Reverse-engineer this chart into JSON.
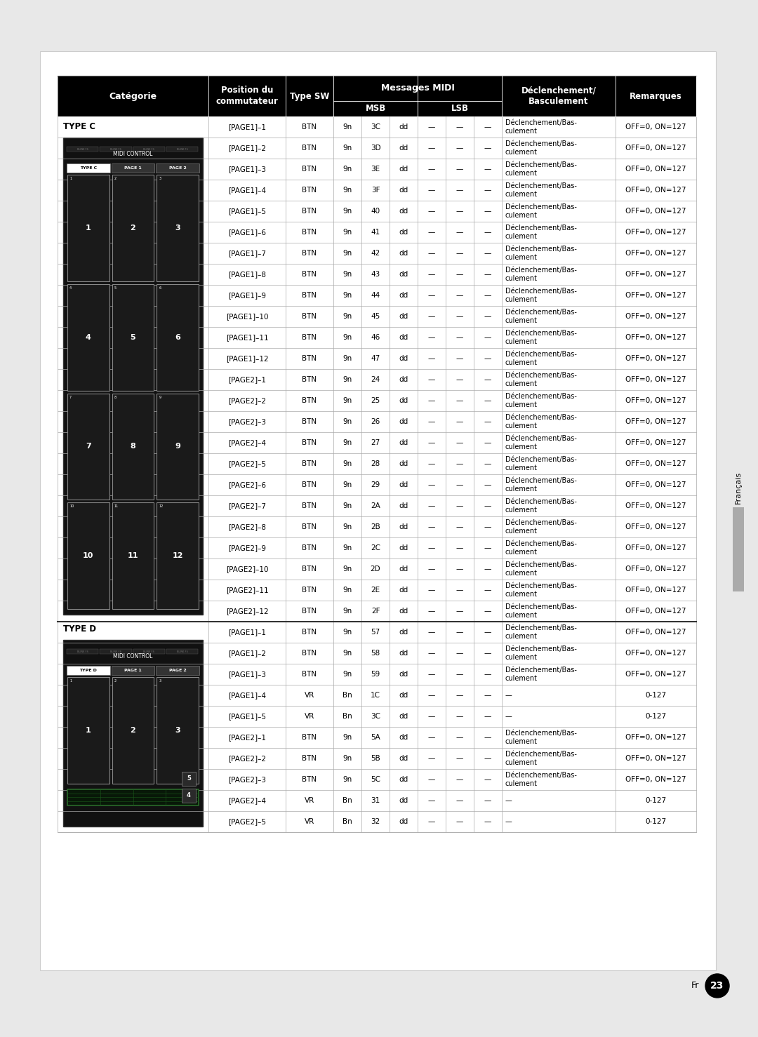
{
  "header_bg": "#000000",
  "header_text": "#ffffff",
  "border_color": "#999999",
  "text_color": "#000000",
  "page_bg": "#ffffff",
  "rows": [
    {
      "page": "[PAGE1]–1",
      "sw": "BTN",
      "msb1": "9n",
      "msb2": "3C",
      "msb3": "dd",
      "lsb1": "—",
      "lsb2": "—",
      "lsb3": "—",
      "trigger": "Déclenchement/Bas-\nculement",
      "remarks": "OFF=0, ON=127",
      "section": "C"
    },
    {
      "page": "[PAGE1]–2",
      "sw": "BTN",
      "msb1": "9n",
      "msb2": "3D",
      "msb3": "dd",
      "lsb1": "—",
      "lsb2": "—",
      "lsb3": "—",
      "trigger": "Déclenchement/Bas-\nculement",
      "remarks": "OFF=0, ON=127",
      "section": "C"
    },
    {
      "page": "[PAGE1]–3",
      "sw": "BTN",
      "msb1": "9n",
      "msb2": "3E",
      "msb3": "dd",
      "lsb1": "—",
      "lsb2": "—",
      "lsb3": "—",
      "trigger": "Déclenchement/Bas-\nculement",
      "remarks": "OFF=0, ON=127",
      "section": "C"
    },
    {
      "page": "[PAGE1]–4",
      "sw": "BTN",
      "msb1": "9n",
      "msb2": "3F",
      "msb3": "dd",
      "lsb1": "—",
      "lsb2": "—",
      "lsb3": "—",
      "trigger": "Déclenchement/Bas-\nculement",
      "remarks": "OFF=0, ON=127",
      "section": "C"
    },
    {
      "page": "[PAGE1]–5",
      "sw": "BTN",
      "msb1": "9n",
      "msb2": "40",
      "msb3": "dd",
      "lsb1": "—",
      "lsb2": "—",
      "lsb3": "—",
      "trigger": "Déclenchement/Bas-\nculement",
      "remarks": "OFF=0, ON=127",
      "section": "C"
    },
    {
      "page": "[PAGE1]–6",
      "sw": "BTN",
      "msb1": "9n",
      "msb2": "41",
      "msb3": "dd",
      "lsb1": "—",
      "lsb2": "—",
      "lsb3": "—",
      "trigger": "Déclenchement/Bas-\nculement",
      "remarks": "OFF=0, ON=127",
      "section": "C"
    },
    {
      "page": "[PAGE1]–7",
      "sw": "BTN",
      "msb1": "9n",
      "msb2": "42",
      "msb3": "dd",
      "lsb1": "—",
      "lsb2": "—",
      "lsb3": "—",
      "trigger": "Déclenchement/Bas-\nculement",
      "remarks": "OFF=0, ON=127",
      "section": "C"
    },
    {
      "page": "[PAGE1]–8",
      "sw": "BTN",
      "msb1": "9n",
      "msb2": "43",
      "msb3": "dd",
      "lsb1": "—",
      "lsb2": "—",
      "lsb3": "—",
      "trigger": "Déclenchement/Bas-\nculement",
      "remarks": "OFF=0, ON=127",
      "section": "C"
    },
    {
      "page": "[PAGE1]–9",
      "sw": "BTN",
      "msb1": "9n",
      "msb2": "44",
      "msb3": "dd",
      "lsb1": "—",
      "lsb2": "—",
      "lsb3": "—",
      "trigger": "Déclenchement/Bas-\nculement",
      "remarks": "OFF=0, ON=127",
      "section": "C"
    },
    {
      "page": "[PAGE1]–10",
      "sw": "BTN",
      "msb1": "9n",
      "msb2": "45",
      "msb3": "dd",
      "lsb1": "—",
      "lsb2": "—",
      "lsb3": "—",
      "trigger": "Déclenchement/Bas-\nculement",
      "remarks": "OFF=0, ON=127",
      "section": "C"
    },
    {
      "page": "[PAGE1]–11",
      "sw": "BTN",
      "msb1": "9n",
      "msb2": "46",
      "msb3": "dd",
      "lsb1": "—",
      "lsb2": "—",
      "lsb3": "—",
      "trigger": "Déclenchement/Bas-\nculement",
      "remarks": "OFF=0, ON=127",
      "section": "C"
    },
    {
      "page": "[PAGE1]–12",
      "sw": "BTN",
      "msb1": "9n",
      "msb2": "47",
      "msb3": "dd",
      "lsb1": "—",
      "lsb2": "—",
      "lsb3": "—",
      "trigger": "Déclenchement/Bas-\nculement",
      "remarks": "OFF=0, ON=127",
      "section": "C"
    },
    {
      "page": "[PAGE2]–1",
      "sw": "BTN",
      "msb1": "9n",
      "msb2": "24",
      "msb3": "dd",
      "lsb1": "—",
      "lsb2": "—",
      "lsb3": "—",
      "trigger": "Déclenchement/Bas-\nculement",
      "remarks": "OFF=0, ON=127",
      "section": "C"
    },
    {
      "page": "[PAGE2]–2",
      "sw": "BTN",
      "msb1": "9n",
      "msb2": "25",
      "msb3": "dd",
      "lsb1": "—",
      "lsb2": "—",
      "lsb3": "—",
      "trigger": "Déclenchement/Bas-\nculement",
      "remarks": "OFF=0, ON=127",
      "section": "C"
    },
    {
      "page": "[PAGE2]–3",
      "sw": "BTN",
      "msb1": "9n",
      "msb2": "26",
      "msb3": "dd",
      "lsb1": "—",
      "lsb2": "—",
      "lsb3": "—",
      "trigger": "Déclenchement/Bas-\nculement",
      "remarks": "OFF=0, ON=127",
      "section": "C"
    },
    {
      "page": "[PAGE2]–4",
      "sw": "BTN",
      "msb1": "9n",
      "msb2": "27",
      "msb3": "dd",
      "lsb1": "—",
      "lsb2": "—",
      "lsb3": "—",
      "trigger": "Déclenchement/Bas-\nculement",
      "remarks": "OFF=0, ON=127",
      "section": "C"
    },
    {
      "page": "[PAGE2]–5",
      "sw": "BTN",
      "msb1": "9n",
      "msb2": "28",
      "msb3": "dd",
      "lsb1": "—",
      "lsb2": "—",
      "lsb3": "—",
      "trigger": "Déclenchement/Bas-\nculement",
      "remarks": "OFF=0, ON=127",
      "section": "C"
    },
    {
      "page": "[PAGE2]–6",
      "sw": "BTN",
      "msb1": "9n",
      "msb2": "29",
      "msb3": "dd",
      "lsb1": "—",
      "lsb2": "—",
      "lsb3": "—",
      "trigger": "Déclenchement/Bas-\nculement",
      "remarks": "OFF=0, ON=127",
      "section": "C"
    },
    {
      "page": "[PAGE2]–7",
      "sw": "BTN",
      "msb1": "9n",
      "msb2": "2A",
      "msb3": "dd",
      "lsb1": "—",
      "lsb2": "—",
      "lsb3": "—",
      "trigger": "Déclenchement/Bas-\nculement",
      "remarks": "OFF=0, ON=127",
      "section": "C"
    },
    {
      "page": "[PAGE2]–8",
      "sw": "BTN",
      "msb1": "9n",
      "msb2": "2B",
      "msb3": "dd",
      "lsb1": "—",
      "lsb2": "—",
      "lsb3": "—",
      "trigger": "Déclenchement/Bas-\nculement",
      "remarks": "OFF=0, ON=127",
      "section": "C"
    },
    {
      "page": "[PAGE2]–9",
      "sw": "BTN",
      "msb1": "9n",
      "msb2": "2C",
      "msb3": "dd",
      "lsb1": "—",
      "lsb2": "—",
      "lsb3": "—",
      "trigger": "Déclenchement/Bas-\nculement",
      "remarks": "OFF=0, ON=127",
      "section": "C"
    },
    {
      "page": "[PAGE2]–10",
      "sw": "BTN",
      "msb1": "9n",
      "msb2": "2D",
      "msb3": "dd",
      "lsb1": "—",
      "lsb2": "—",
      "lsb3": "—",
      "trigger": "Déclenchement/Bas-\nculement",
      "remarks": "OFF=0, ON=127",
      "section": "C"
    },
    {
      "page": "[PAGE2]–11",
      "sw": "BTN",
      "msb1": "9n",
      "msb2": "2E",
      "msb3": "dd",
      "lsb1": "—",
      "lsb2": "—",
      "lsb3": "—",
      "trigger": "Déclenchement/Bas-\nculement",
      "remarks": "OFF=0, ON=127",
      "section": "C"
    },
    {
      "page": "[PAGE2]–12",
      "sw": "BTN",
      "msb1": "9n",
      "msb2": "2F",
      "msb3": "dd",
      "lsb1": "—",
      "lsb2": "—",
      "lsb3": "—",
      "trigger": "Déclenchement/Bas-\nculement",
      "remarks": "OFF=0, ON=127",
      "section": "C"
    },
    {
      "page": "[PAGE1]–1",
      "sw": "BTN",
      "msb1": "9n",
      "msb2": "57",
      "msb3": "dd",
      "lsb1": "—",
      "lsb2": "—",
      "lsb3": "—",
      "trigger": "Déclenchement/Bas-\nculement",
      "remarks": "OFF=0, ON=127",
      "section": "D"
    },
    {
      "page": "[PAGE1]–2",
      "sw": "BTN",
      "msb1": "9n",
      "msb2": "58",
      "msb3": "dd",
      "lsb1": "—",
      "lsb2": "—",
      "lsb3": "—",
      "trigger": "Déclenchement/Bas-\nculement",
      "remarks": "OFF=0, ON=127",
      "section": "D"
    },
    {
      "page": "[PAGE1]–3",
      "sw": "BTN",
      "msb1": "9n",
      "msb2": "59",
      "msb3": "dd",
      "lsb1": "—",
      "lsb2": "—",
      "lsb3": "—",
      "trigger": "Déclenchement/Bas-\nculement",
      "remarks": "OFF=0, ON=127",
      "section": "D"
    },
    {
      "page": "[PAGE1]–4",
      "sw": "VR",
      "msb1": "Bn",
      "msb2": "1C",
      "msb3": "dd",
      "lsb1": "—",
      "lsb2": "—",
      "lsb3": "—",
      "trigger": "—",
      "remarks": "0-127",
      "section": "D"
    },
    {
      "page": "[PAGE1]–5",
      "sw": "VR",
      "msb1": "Bn",
      "msb2": "3C",
      "msb3": "dd",
      "lsb1": "—",
      "lsb2": "—",
      "lsb3": "—",
      "trigger": "—",
      "remarks": "0-127",
      "section": "D"
    },
    {
      "page": "[PAGE2]–1",
      "sw": "BTN",
      "msb1": "9n",
      "msb2": "5A",
      "msb3": "dd",
      "lsb1": "—",
      "lsb2": "—",
      "lsb3": "—",
      "trigger": "Déclenchement/Bas-\nculement",
      "remarks": "OFF=0, ON=127",
      "section": "D"
    },
    {
      "page": "[PAGE2]–2",
      "sw": "BTN",
      "msb1": "9n",
      "msb2": "5B",
      "msb3": "dd",
      "lsb1": "—",
      "lsb2": "—",
      "lsb3": "—",
      "trigger": "Déclenchement/Bas-\nculement",
      "remarks": "OFF=0, ON=127",
      "section": "D"
    },
    {
      "page": "[PAGE2]–3",
      "sw": "BTN",
      "msb1": "9n",
      "msb2": "5C",
      "msb3": "dd",
      "lsb1": "—",
      "lsb2": "—",
      "lsb3": "—",
      "trigger": "Déclenchement/Bas-\nculement",
      "remarks": "OFF=0, ON=127",
      "section": "D"
    },
    {
      "page": "[PAGE2]–4",
      "sw": "VR",
      "msb1": "Bn",
      "msb2": "31",
      "msb3": "dd",
      "lsb1": "—",
      "lsb2": "—",
      "lsb3": "—",
      "trigger": "—",
      "remarks": "0-127",
      "section": "D"
    },
    {
      "page": "[PAGE2]–5",
      "sw": "VR",
      "msb1": "Bn",
      "msb2": "32",
      "msb3": "dd",
      "lsb1": "—",
      "lsb2": "—",
      "lsb3": "—",
      "trigger": "—",
      "remarks": "0-127",
      "section": "D"
    }
  ]
}
